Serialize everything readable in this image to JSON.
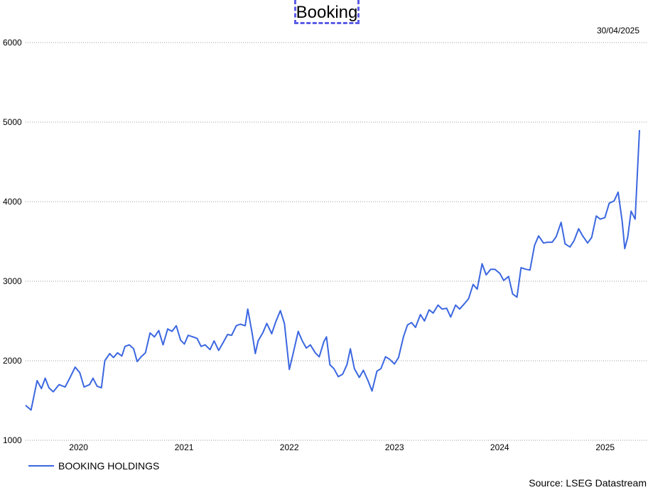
{
  "header": {
    "title": "Booking",
    "date": "30/04/2025",
    "source": "Source: LSEG Datastream"
  },
  "chart_data": {
    "type": "line",
    "title": "Booking",
    "xlabel": "",
    "ylabel": "",
    "ylim": [
      1000,
      6000
    ],
    "yticks": [
      1000,
      2000,
      3000,
      4000,
      5000,
      6000
    ],
    "xlim": [
      "2019-07-01",
      "2025-04-30"
    ],
    "xticks": [
      {
        "label": "2020",
        "date": "2020-01-01"
      },
      {
        "label": "2021",
        "date": "2021-01-01"
      },
      {
        "label": "2022",
        "date": "2022-01-01"
      },
      {
        "label": "2023",
        "date": "2023-01-01"
      },
      {
        "label": "2024",
        "date": "2024-01-01"
      },
      {
        "label": "2025",
        "date": "2025-01-01"
      }
    ],
    "grid": true,
    "legend": "bottom-left",
    "series": [
      {
        "name": "BOOKING HOLDINGS",
        "color": "#3b67e0",
        "points": [
          [
            "2019-07-01",
            1440
          ],
          [
            "2019-07-20",
            1380
          ],
          [
            "2019-08-10",
            1750
          ],
          [
            "2019-08-25",
            1650
          ],
          [
            "2019-09-07",
            1780
          ],
          [
            "2019-09-20",
            1660
          ],
          [
            "2019-10-05",
            1610
          ],
          [
            "2019-10-25",
            1700
          ],
          [
            "2019-11-15",
            1670
          ],
          [
            "2019-12-01",
            1780
          ],
          [
            "2019-12-20",
            1920
          ],
          [
            "2020-01-05",
            1850
          ],
          [
            "2020-01-20",
            1670
          ],
          [
            "2020-02-08",
            1700
          ],
          [
            "2020-02-20",
            1780
          ],
          [
            "2020-03-05",
            1680
          ],
          [
            "2020-03-20",
            1660
          ],
          [
            "2020-04-01",
            2000
          ],
          [
            "2020-04-18",
            2090
          ],
          [
            "2020-05-01",
            2040
          ],
          [
            "2020-05-15",
            2100
          ],
          [
            "2020-05-30",
            2060
          ],
          [
            "2020-06-10",
            2180
          ],
          [
            "2020-06-25",
            2200
          ],
          [
            "2020-07-10",
            2150
          ],
          [
            "2020-07-22",
            1990
          ],
          [
            "2020-08-05",
            2050
          ],
          [
            "2020-08-20",
            2100
          ],
          [
            "2020-09-05",
            2350
          ],
          [
            "2020-09-20",
            2300
          ],
          [
            "2020-10-05",
            2380
          ],
          [
            "2020-10-20",
            2200
          ],
          [
            "2020-11-05",
            2400
          ],
          [
            "2020-11-20",
            2370
          ],
          [
            "2020-12-05",
            2440
          ],
          [
            "2020-12-20",
            2260
          ],
          [
            "2021-01-02",
            2210
          ],
          [
            "2021-01-15",
            2320
          ],
          [
            "2021-02-01",
            2300
          ],
          [
            "2021-02-15",
            2280
          ],
          [
            "2021-03-01",
            2180
          ],
          [
            "2021-03-15",
            2200
          ],
          [
            "2021-04-01",
            2140
          ],
          [
            "2021-04-15",
            2250
          ],
          [
            "2021-05-01",
            2130
          ],
          [
            "2021-05-15",
            2220
          ],
          [
            "2021-06-01",
            2330
          ],
          [
            "2021-06-15",
            2320
          ],
          [
            "2021-07-01",
            2440
          ],
          [
            "2021-07-15",
            2460
          ],
          [
            "2021-08-01",
            2440
          ],
          [
            "2021-08-10",
            2650
          ],
          [
            "2021-08-25",
            2350
          ],
          [
            "2021-09-05",
            2090
          ],
          [
            "2021-09-15",
            2250
          ],
          [
            "2021-10-01",
            2350
          ],
          [
            "2021-10-15",
            2470
          ],
          [
            "2021-11-01",
            2340
          ],
          [
            "2021-11-15",
            2490
          ],
          [
            "2021-12-01",
            2630
          ],
          [
            "2021-12-15",
            2470
          ],
          [
            "2022-01-01",
            1890
          ],
          [
            "2022-01-15",
            2100
          ],
          [
            "2022-02-01",
            2370
          ],
          [
            "2022-02-15",
            2250
          ],
          [
            "2022-03-01",
            2160
          ],
          [
            "2022-03-15",
            2200
          ],
          [
            "2022-04-01",
            2100
          ],
          [
            "2022-04-15",
            2050
          ],
          [
            "2022-05-01",
            2240
          ],
          [
            "2022-05-10",
            2300
          ],
          [
            "2022-05-22",
            1950
          ],
          [
            "2022-06-05",
            1900
          ],
          [
            "2022-06-20",
            1800
          ],
          [
            "2022-07-05",
            1830
          ],
          [
            "2022-07-20",
            1950
          ],
          [
            "2022-08-01",
            2150
          ],
          [
            "2022-08-15",
            1900
          ],
          [
            "2022-09-01",
            1790
          ],
          [
            "2022-09-15",
            1880
          ],
          [
            "2022-10-01",
            1750
          ],
          [
            "2022-10-15",
            1620
          ],
          [
            "2022-11-01",
            1870
          ],
          [
            "2022-11-15",
            1900
          ],
          [
            "2022-12-01",
            2050
          ],
          [
            "2022-12-15",
            2020
          ],
          [
            "2023-01-01",
            1960
          ],
          [
            "2023-01-15",
            2040
          ],
          [
            "2023-02-01",
            2300
          ],
          [
            "2023-02-15",
            2450
          ],
          [
            "2023-03-01",
            2480
          ],
          [
            "2023-03-15",
            2420
          ],
          [
            "2023-04-01",
            2580
          ],
          [
            "2023-04-15",
            2500
          ],
          [
            "2023-05-01",
            2640
          ],
          [
            "2023-05-15",
            2600
          ],
          [
            "2023-06-01",
            2700
          ],
          [
            "2023-06-15",
            2650
          ],
          [
            "2023-07-01",
            2660
          ],
          [
            "2023-07-15",
            2550
          ],
          [
            "2023-08-01",
            2700
          ],
          [
            "2023-08-15",
            2650
          ],
          [
            "2023-09-01",
            2720
          ],
          [
            "2023-09-15",
            2780
          ],
          [
            "2023-10-01",
            2960
          ],
          [
            "2023-10-15",
            2900
          ],
          [
            "2023-11-01",
            3220
          ],
          [
            "2023-11-15",
            3080
          ],
          [
            "2023-12-01",
            3150
          ],
          [
            "2023-12-15",
            3150
          ],
          [
            "2024-01-01",
            3100
          ],
          [
            "2024-01-15",
            3010
          ],
          [
            "2024-02-01",
            3060
          ],
          [
            "2024-02-15",
            2840
          ],
          [
            "2024-03-01",
            2800
          ],
          [
            "2024-03-15",
            3170
          ],
          [
            "2024-04-01",
            3150
          ],
          [
            "2024-04-15",
            3140
          ],
          [
            "2024-05-01",
            3450
          ],
          [
            "2024-05-15",
            3570
          ],
          [
            "2024-06-01",
            3480
          ],
          [
            "2024-06-15",
            3490
          ],
          [
            "2024-07-01",
            3490
          ],
          [
            "2024-07-15",
            3560
          ],
          [
            "2024-08-01",
            3740
          ],
          [
            "2024-08-15",
            3470
          ],
          [
            "2024-09-01",
            3430
          ],
          [
            "2024-09-15",
            3510
          ],
          [
            "2024-10-01",
            3660
          ],
          [
            "2024-10-15",
            3570
          ],
          [
            "2024-11-01",
            3480
          ],
          [
            "2024-11-15",
            3550
          ],
          [
            "2024-12-01",
            3820
          ],
          [
            "2024-12-15",
            3780
          ],
          [
            "2024-12-31",
            3800
          ],
          [
            "2025-01-15",
            3980
          ],
          [
            "2025-02-01",
            4010
          ],
          [
            "2025-02-15",
            4120
          ],
          [
            "2025-03-01",
            3750
          ],
          [
            "2025-03-10",
            3410
          ],
          [
            "2025-03-20",
            3550
          ],
          [
            "2025-04-01",
            3880
          ],
          [
            "2025-04-15",
            3780
          ],
          [
            "2025-04-30",
            4900
          ]
        ]
      }
    ]
  }
}
